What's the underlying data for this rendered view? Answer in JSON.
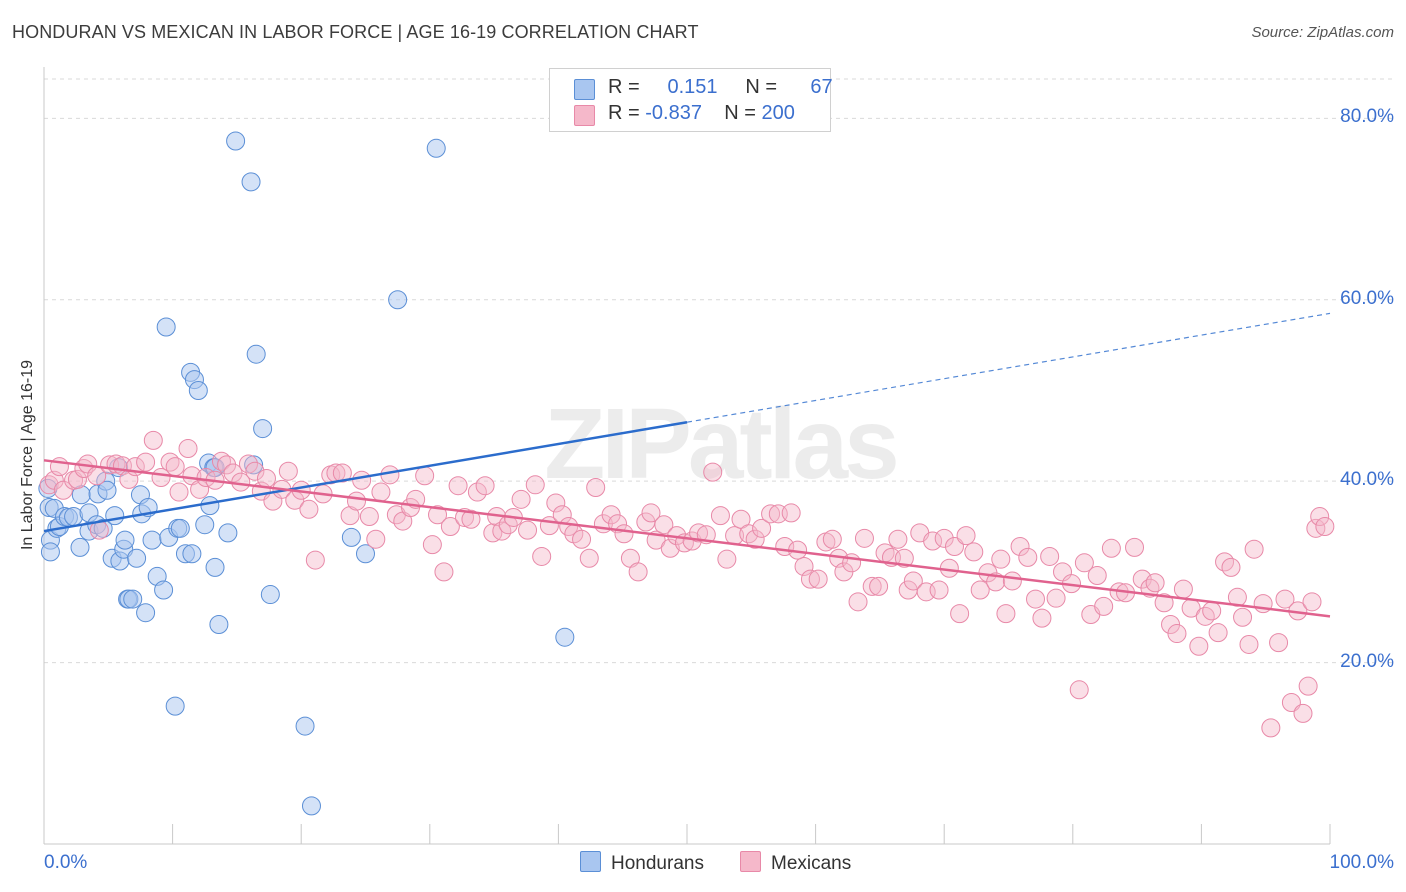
{
  "title": "HONDURAN VS MEXICAN IN LABOR FORCE | AGE 16-19 CORRELATION CHART",
  "source": "Source: ZipAtlas.com",
  "watermark": "ZIPatlas",
  "legend_top": {
    "rows": [
      {
        "r_label": "R =",
        "r_value": "0.151",
        "n_label": "N =",
        "n_value": "67"
      },
      {
        "r_label": "R =",
        "r_value": "-0.837",
        "n_label": "N =",
        "n_value": "200"
      }
    ]
  },
  "legend_bottom": [
    "Hondurans",
    "Mexicans"
  ],
  "colors": {
    "hondurans_fill": "#a9c6f0",
    "hondurans_stroke": "#5b8fd6",
    "hondurans_line": "#2b6ccc",
    "mexicans_fill": "#f5b8ca",
    "mexicans_stroke": "#e889a8",
    "mexicans_line": "#e0628e",
    "tick_text": "#3b6fce",
    "grid": "#d9d9d9"
  },
  "chart_data": {
    "type": "scatter",
    "ylabel": "In Labor Force | Age 16-19",
    "xlabel": "",
    "xlim": [
      0,
      100
    ],
    "ylim": [
      0,
      85
    ],
    "x_tick_labels": [
      "0.0%",
      "100.0%"
    ],
    "y_ticks": [
      20,
      40,
      60,
      80
    ],
    "y_tick_labels": [
      "20.0%",
      "40.0%",
      "60.0%",
      "80.0%"
    ],
    "grid": true,
    "legend_position": "top-center",
    "series": [
      {
        "name": "Hondurans",
        "trend": {
          "x0": 0,
          "y0": 34.5,
          "x1": 50,
          "y1": 46.5,
          "dashed_to_x": 100,
          "dashed_to_y": 58.5
        },
        "points": [
          [
            0.3,
            39.2
          ],
          [
            0.4,
            37.1
          ],
          [
            0.5,
            33.5
          ],
          [
            0.5,
            32.2
          ],
          [
            0.8,
            37.0
          ],
          [
            1.0,
            34.8
          ],
          [
            1.2,
            35.0
          ],
          [
            1.6,
            36.1
          ],
          [
            1.9,
            36.0
          ],
          [
            2.3,
            36.1
          ],
          [
            2.8,
            32.7
          ],
          [
            2.9,
            38.5
          ],
          [
            3.5,
            36.5
          ],
          [
            3.5,
            34.5
          ],
          [
            4.1,
            35.2
          ],
          [
            4.2,
            38.6
          ],
          [
            4.6,
            34.8
          ],
          [
            4.8,
            40.0
          ],
          [
            4.9,
            39.0
          ],
          [
            5.3,
            31.5
          ],
          [
            5.5,
            36.2
          ],
          [
            5.8,
            41.5
          ],
          [
            5.9,
            31.2
          ],
          [
            6.2,
            32.5
          ],
          [
            6.3,
            33.5
          ],
          [
            6.5,
            27.0
          ],
          [
            6.6,
            27.0
          ],
          [
            6.9,
            27.0
          ],
          [
            7.2,
            31.5
          ],
          [
            7.5,
            38.5
          ],
          [
            7.6,
            36.4
          ],
          [
            7.9,
            25.5
          ],
          [
            8.1,
            37.1
          ],
          [
            8.4,
            33.5
          ],
          [
            8.8,
            29.5
          ],
          [
            9.3,
            28.0
          ],
          [
            9.5,
            57.0
          ],
          [
            9.7,
            33.8
          ],
          [
            10.2,
            15.2
          ],
          [
            10.4,
            34.8
          ],
          [
            10.6,
            34.8
          ],
          [
            11.0,
            32.0
          ],
          [
            11.4,
            52.0
          ],
          [
            11.5,
            32.0
          ],
          [
            11.7,
            51.2
          ],
          [
            12.0,
            50.0
          ],
          [
            12.5,
            35.2
          ],
          [
            12.8,
            42.0
          ],
          [
            13.3,
            30.5
          ],
          [
            13.6,
            24.2
          ],
          [
            13.2,
            41.5
          ],
          [
            12.9,
            37.3
          ],
          [
            14.3,
            34.3
          ],
          [
            14.9,
            77.5
          ],
          [
            16.1,
            73.0
          ],
          [
            16.5,
            54.0
          ],
          [
            16.3,
            41.8
          ],
          [
            17.0,
            45.8
          ],
          [
            17.6,
            27.5
          ],
          [
            20.3,
            13.0
          ],
          [
            20.8,
            4.2
          ],
          [
            23.9,
            33.8
          ],
          [
            25.0,
            32.0
          ],
          [
            27.5,
            60.0
          ],
          [
            30.5,
            76.7
          ],
          [
            40.5,
            22.8
          ],
          [
            13.3,
            41.5
          ]
        ]
      },
      {
        "name": "Mexicans",
        "trend": {
          "x0": 0,
          "y0": 42.3,
          "x1": 100,
          "y1": 25.1
        },
        "points": [
          [
            0.4,
            39.6
          ],
          [
            0.8,
            40.1
          ],
          [
            1.2,
            41.6
          ],
          [
            1.5,
            39.0
          ],
          [
            2.3,
            40.1
          ],
          [
            2.6,
            40.2
          ],
          [
            3.1,
            41.4
          ],
          [
            3.4,
            41.9
          ],
          [
            4.1,
            40.6
          ],
          [
            4.3,
            34.6
          ],
          [
            5.1,
            41.8
          ],
          [
            5.6,
            41.9
          ],
          [
            6.1,
            41.7
          ],
          [
            6.6,
            40.2
          ],
          [
            7.1,
            41.6
          ],
          [
            7.9,
            42.1
          ],
          [
            8.5,
            44.5
          ],
          [
            9.1,
            40.4
          ],
          [
            9.8,
            42.1
          ],
          [
            10.2,
            41.6
          ],
          [
            10.5,
            38.8
          ],
          [
            11.2,
            43.6
          ],
          [
            11.5,
            40.6
          ],
          [
            12.1,
            39.1
          ],
          [
            12.6,
            40.4
          ],
          [
            13.3,
            40.1
          ],
          [
            13.8,
            42.2
          ],
          [
            14.2,
            41.8
          ],
          [
            14.7,
            40.9
          ],
          [
            15.3,
            39.9
          ],
          [
            15.9,
            41.9
          ],
          [
            16.4,
            41.1
          ],
          [
            16.9,
            38.9
          ],
          [
            17.3,
            40.3
          ],
          [
            17.8,
            37.8
          ],
          [
            18.5,
            39.1
          ],
          [
            19.0,
            41.1
          ],
          [
            19.5,
            37.9
          ],
          [
            20.0,
            39.0
          ],
          [
            20.6,
            36.9
          ],
          [
            21.1,
            31.3
          ],
          [
            21.7,
            38.6
          ],
          [
            22.3,
            40.7
          ],
          [
            22.7,
            40.9
          ],
          [
            23.2,
            40.9
          ],
          [
            23.8,
            36.2
          ],
          [
            24.3,
            37.8
          ],
          [
            24.7,
            40.1
          ],
          [
            25.3,
            36.1
          ],
          [
            25.8,
            33.6
          ],
          [
            26.2,
            38.8
          ],
          [
            26.9,
            40.7
          ],
          [
            27.4,
            36.3
          ],
          [
            27.9,
            35.6
          ],
          [
            28.5,
            37.1
          ],
          [
            28.9,
            38.0
          ],
          [
            29.6,
            40.6
          ],
          [
            30.2,
            33.0
          ],
          [
            30.6,
            36.3
          ],
          [
            31.1,
            30.0
          ],
          [
            31.6,
            35.0
          ],
          [
            32.2,
            39.5
          ],
          [
            32.7,
            36.0
          ],
          [
            33.2,
            35.8
          ],
          [
            33.7,
            38.8
          ],
          [
            34.3,
            39.5
          ],
          [
            34.9,
            34.3
          ],
          [
            35.2,
            36.1
          ],
          [
            35.6,
            34.5
          ],
          [
            36.1,
            35.2
          ],
          [
            36.5,
            36.0
          ],
          [
            37.1,
            38.0
          ],
          [
            37.6,
            34.6
          ],
          [
            38.2,
            39.6
          ],
          [
            38.7,
            31.7
          ],
          [
            39.3,
            35.1
          ],
          [
            39.8,
            37.6
          ],
          [
            40.3,
            36.3
          ],
          [
            40.8,
            35.0
          ],
          [
            41.2,
            34.2
          ],
          [
            41.8,
            33.6
          ],
          [
            42.4,
            31.5
          ],
          [
            42.9,
            39.3
          ],
          [
            43.5,
            35.3
          ],
          [
            44.1,
            36.3
          ],
          [
            44.6,
            35.3
          ],
          [
            45.1,
            34.2
          ],
          [
            45.6,
            31.5
          ],
          [
            46.2,
            30.0
          ],
          [
            46.8,
            35.5
          ],
          [
            47.2,
            36.5
          ],
          [
            47.6,
            33.5
          ],
          [
            48.2,
            35.2
          ],
          [
            48.7,
            32.6
          ],
          [
            49.2,
            34.0
          ],
          [
            49.8,
            33.2
          ],
          [
            50.4,
            33.4
          ],
          [
            50.9,
            34.3
          ],
          [
            51.5,
            34.1
          ],
          [
            52.0,
            41.0
          ],
          [
            52.6,
            36.2
          ],
          [
            53.1,
            31.4
          ],
          [
            53.7,
            34.0
          ],
          [
            54.2,
            35.8
          ],
          [
            54.8,
            34.2
          ],
          [
            55.3,
            33.6
          ],
          [
            55.8,
            34.8
          ],
          [
            56.5,
            36.4
          ],
          [
            57.1,
            36.4
          ],
          [
            57.6,
            32.8
          ],
          [
            58.1,
            36.5
          ],
          [
            58.6,
            32.4
          ],
          [
            59.1,
            30.6
          ],
          [
            59.6,
            29.2
          ],
          [
            60.2,
            29.2
          ],
          [
            60.8,
            33.3
          ],
          [
            61.3,
            33.6
          ],
          [
            61.8,
            31.5
          ],
          [
            62.2,
            30.0
          ],
          [
            62.8,
            31.0
          ],
          [
            63.3,
            26.7
          ],
          [
            63.8,
            33.7
          ],
          [
            64.4,
            28.4
          ],
          [
            64.9,
            28.4
          ],
          [
            65.4,
            32.1
          ],
          [
            65.9,
            31.6
          ],
          [
            66.4,
            33.6
          ],
          [
            66.9,
            31.5
          ],
          [
            67.2,
            28.0
          ],
          [
            67.6,
            29.0
          ],
          [
            68.1,
            34.3
          ],
          [
            68.6,
            27.8
          ],
          [
            69.1,
            33.4
          ],
          [
            69.6,
            28.0
          ],
          [
            70.0,
            33.7
          ],
          [
            70.4,
            30.4
          ],
          [
            70.8,
            32.8
          ],
          [
            71.2,
            25.4
          ],
          [
            71.7,
            34.0
          ],
          [
            72.3,
            32.2
          ],
          [
            72.8,
            28.0
          ],
          [
            73.4,
            29.9
          ],
          [
            74.0,
            28.9
          ],
          [
            74.4,
            31.4
          ],
          [
            74.8,
            25.4
          ],
          [
            75.3,
            29.0
          ],
          [
            75.9,
            32.8
          ],
          [
            76.5,
            31.6
          ],
          [
            77.1,
            27.0
          ],
          [
            77.6,
            24.9
          ],
          [
            78.2,
            31.7
          ],
          [
            78.7,
            27.1
          ],
          [
            79.2,
            30.0
          ],
          [
            79.9,
            28.7
          ],
          [
            80.5,
            17.0
          ],
          [
            80.9,
            31.0
          ],
          [
            81.4,
            25.3
          ],
          [
            81.9,
            29.6
          ],
          [
            82.4,
            26.2
          ],
          [
            83.0,
            32.6
          ],
          [
            83.6,
            27.8
          ],
          [
            84.1,
            27.7
          ],
          [
            84.8,
            32.7
          ],
          [
            85.4,
            29.2
          ],
          [
            86.0,
            28.2
          ],
          [
            86.4,
            28.8
          ],
          [
            87.1,
            26.6
          ],
          [
            87.6,
            24.2
          ],
          [
            88.1,
            23.2
          ],
          [
            88.6,
            28.1
          ],
          [
            89.2,
            26.0
          ],
          [
            89.8,
            21.8
          ],
          [
            90.3,
            25.1
          ],
          [
            90.8,
            25.7
          ],
          [
            91.3,
            23.3
          ],
          [
            91.8,
            31.1
          ],
          [
            92.3,
            30.5
          ],
          [
            92.8,
            27.2
          ],
          [
            93.2,
            25.0
          ],
          [
            93.7,
            22.0
          ],
          [
            94.1,
            32.5
          ],
          [
            94.8,
            26.5
          ],
          [
            95.4,
            12.8
          ],
          [
            96.0,
            22.2
          ],
          [
            96.5,
            27.0
          ],
          [
            97.0,
            15.6
          ],
          [
            97.5,
            25.7
          ],
          [
            97.9,
            14.4
          ],
          [
            98.3,
            17.4
          ],
          [
            98.6,
            26.7
          ],
          [
            98.9,
            34.8
          ],
          [
            99.2,
            36.1
          ],
          [
            99.6,
            35.0
          ]
        ]
      }
    ]
  }
}
